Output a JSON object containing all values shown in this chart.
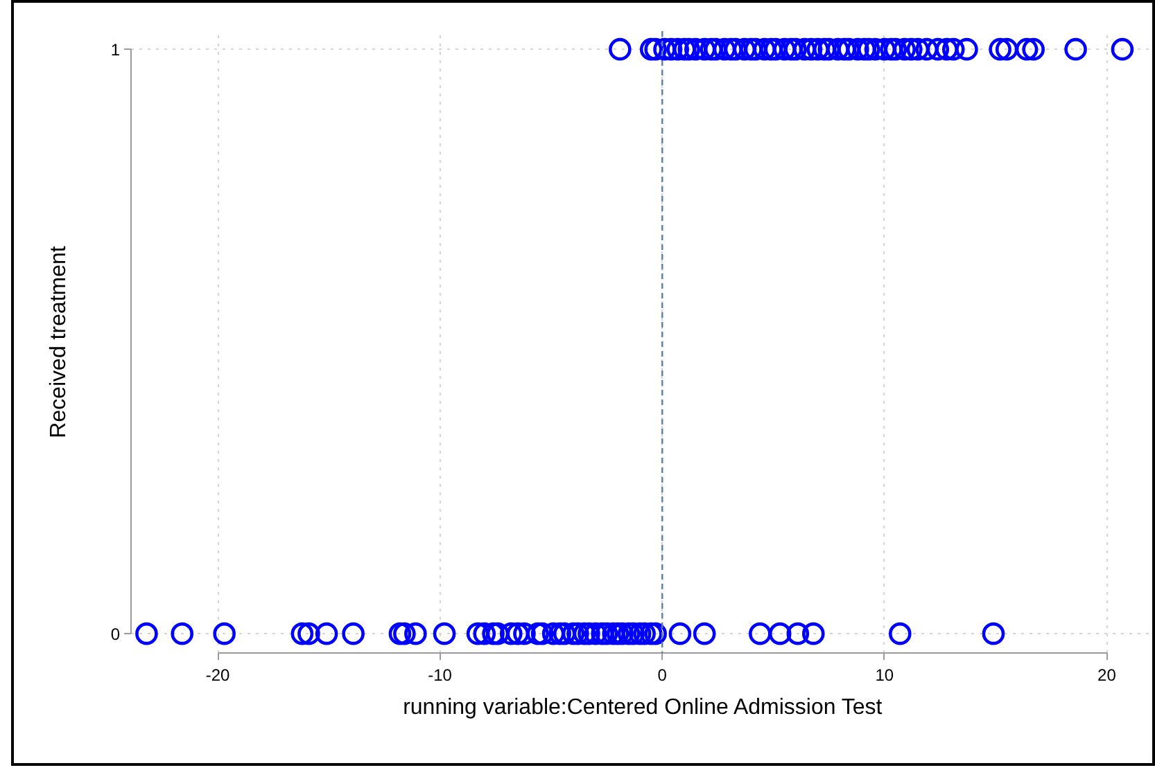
{
  "chart_data": {
    "type": "scatter",
    "xlabel": "running variable:Centered Online Admission Test",
    "ylabel": "Received treatment",
    "series": [
      {
        "color": "#0000ff",
        "x": [
          -23.2,
          -21.6,
          -19.7,
          -16.2,
          -15.9,
          -15.1,
          -13.9,
          -11.8,
          -11.6,
          -11.1,
          -9.8,
          -8.3,
          -8.0,
          -7.6,
          -7.4,
          -6.8,
          -6.5,
          -6.2,
          -5.6,
          -5.4,
          -4.9,
          -4.6,
          -4.4,
          -4.0,
          -3.8,
          -3.5,
          -3.3,
          -3.0,
          -2.7,
          -2.5,
          -2.2,
          -2.0,
          -1.8,
          -1.5,
          -1.3,
          -1.0,
          -0.8,
          -0.5,
          -0.3,
          0.8,
          1.9,
          4.4,
          5.3,
          6.1,
          6.8,
          10.7,
          14.9,
          -1.9,
          -0.5,
          -0.3,
          0.1,
          0.4,
          0.7,
          1.0,
          1.2,
          1.5,
          1.9,
          2.2,
          2.4,
          2.8,
          3.1,
          3.3,
          3.7,
          4.0,
          4.2,
          4.6,
          4.9,
          5.1,
          5.5,
          5.8,
          6.0,
          6.4,
          6.7,
          7.0,
          7.3,
          7.5,
          7.9,
          8.2,
          8.4,
          8.8,
          9.1,
          9.3,
          9.6,
          10.0,
          10.3,
          10.5,
          10.9,
          11.2,
          11.5,
          11.9,
          12.4,
          12.8,
          13.1,
          13.7,
          15.2,
          15.5,
          16.4,
          16.7,
          18.6,
          20.7
        ],
        "values": [
          0,
          0,
          0,
          0,
          0,
          0,
          0,
          0,
          0,
          0,
          0,
          0,
          0,
          0,
          0,
          0,
          0,
          0,
          0,
          0,
          0,
          0,
          0,
          0,
          0,
          0,
          0,
          0,
          0,
          0,
          0,
          0,
          0,
          0,
          0,
          0,
          0,
          0,
          0,
          0,
          0,
          0,
          0,
          0,
          0,
          0,
          0,
          1,
          1,
          1,
          1,
          1,
          1,
          1,
          1,
          1,
          1,
          1,
          1,
          1,
          1,
          1,
          1,
          1,
          1,
          1,
          1,
          1,
          1,
          1,
          1,
          1,
          1,
          1,
          1,
          1,
          1,
          1,
          1,
          1,
          1,
          1,
          1,
          1,
          1,
          1,
          1,
          1,
          1,
          1,
          1,
          1,
          1,
          1,
          1,
          1,
          1,
          1,
          1,
          1
        ]
      }
    ],
    "xlim": [
      -23.9,
      22.2
    ],
    "ylim": [
      -0.033,
      1.031
    ],
    "xticks": [
      -20,
      -10,
      0,
      10,
      20
    ],
    "yticks": [
      0,
      1
    ],
    "grid": true,
    "marker": "circle",
    "ref_lines": [
      {
        "axis": "x",
        "value": 0,
        "color": "#5b7fa6",
        "line_style": "dashed"
      }
    ]
  }
}
